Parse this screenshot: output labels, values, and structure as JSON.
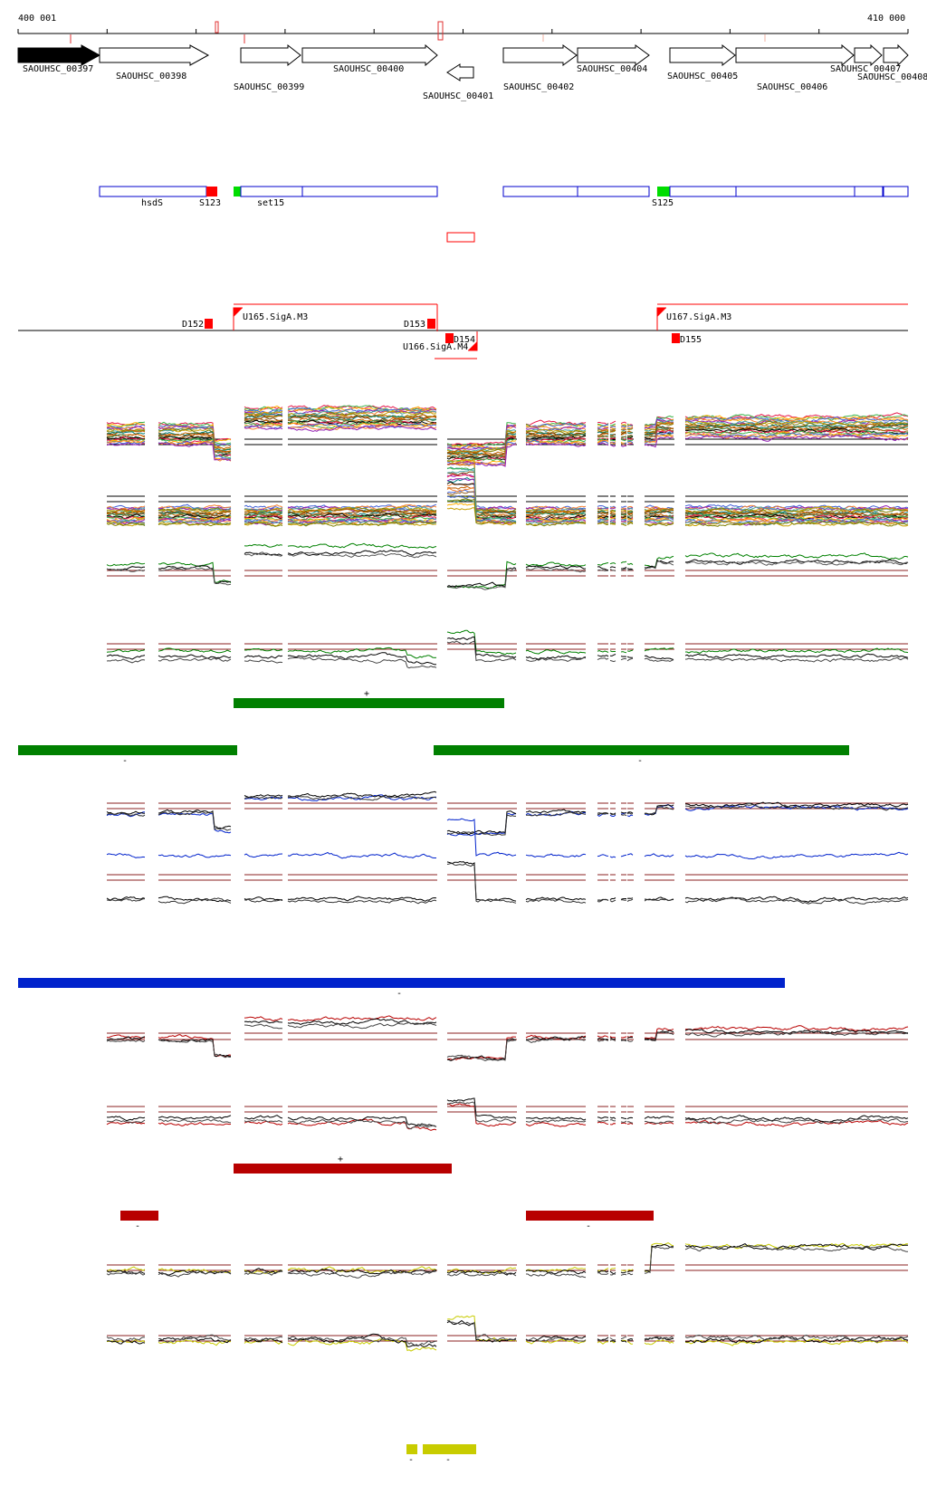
{
  "ruler": {
    "start_label": "400 001",
    "end_label": "410 000"
  },
  "genes": [
    {
      "id": "SAOUHSC_00397",
      "strand": "+",
      "filled": true
    },
    {
      "id": "SAOUHSC_00398",
      "strand": "+"
    },
    {
      "id": "SAOUHSC_00399",
      "strand": "+"
    },
    {
      "id": "SAOUHSC_00400",
      "strand": "+"
    },
    {
      "id": "SAOUHSC_00401",
      "strand": "-"
    },
    {
      "id": "SAOUHSC_00402",
      "strand": "+"
    },
    {
      "id": "SAOUHSC_00404",
      "strand": "+"
    },
    {
      "id": "SAOUHSC_00405",
      "strand": "+"
    },
    {
      "id": "SAOUHSC_00406",
      "strand": "+"
    },
    {
      "id": "SAOUHSC_00407",
      "strand": "+"
    },
    {
      "id": "SAOUHSC_00408",
      "strand": "+"
    }
  ],
  "annotations": {
    "labels": [
      "hsdS",
      "set15"
    ],
    "sites": [
      "S123",
      "S125"
    ]
  },
  "transcription": {
    "promoters": [
      "U165.SigA.M3",
      "U166.SigA.M4",
      "U167.SigA.M3"
    ],
    "terminators": [
      "D152",
      "D153",
      "D154",
      "D155"
    ]
  },
  "segment_marks": {
    "plus": "+",
    "minus": "-"
  },
  "colors": {
    "green": "#008000",
    "blue": "#0022cc",
    "red": "#b80000",
    "yellow": "#c8cc00",
    "gene_box": "#0000cc",
    "feature_red": "#ff0000",
    "feature_green": "#00dd00",
    "threshold": "#8b2222"
  }
}
